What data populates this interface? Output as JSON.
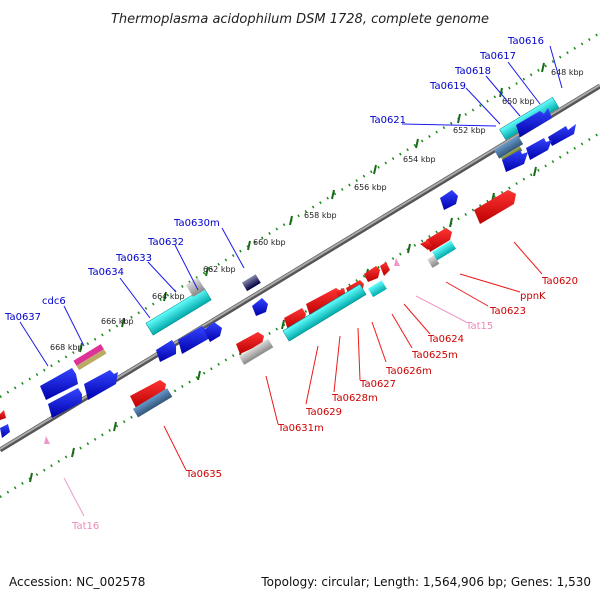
{
  "title": "Thermoplasma acidophilum DSM 1728, complete genome",
  "footer": {
    "accession": "Accession: NC_002578",
    "topology": "Topology: circular; Length: 1,564,906 bp; Genes: 1,530"
  },
  "colors": {
    "forward_label": "#0000cc",
    "reverse_label": "#cc0000",
    "trna_label": "#ee88bb",
    "backbone": "#888888",
    "tick": "#228822"
  },
  "scale_labels": [
    "648 kbp",
    "650 kbp",
    "652 kbp",
    "654 kbp",
    "656 kbp",
    "658 kbp",
    "660 kbp",
    "662 kbp",
    "664 kbp",
    "666 kbp",
    "668 kbp"
  ],
  "forward_labels": [
    "Ta0616",
    "Ta0617",
    "Ta0618",
    "Ta0619",
    "Ta0621",
    "Ta0630m",
    "Ta0632",
    "Ta0633",
    "Ta0634",
    "cdc6",
    "Ta0637"
  ],
  "reverse_labels": [
    "Ta0620",
    "ppnK",
    "Ta0623",
    "Ta0624",
    "Ta0625m",
    "Ta0626m",
    "Ta0627",
    "Ta0628m",
    "Ta0629",
    "Ta0631m",
    "Ta0635"
  ],
  "trna_labels": [
    "Tat15",
    "Tat16"
  ]
}
